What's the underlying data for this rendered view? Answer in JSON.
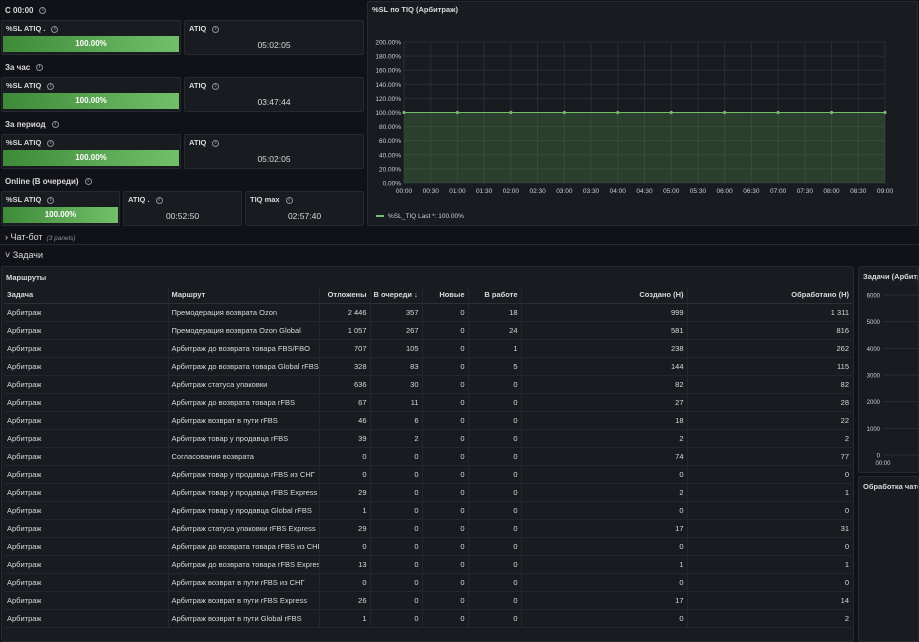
{
  "rows": {
    "r1": {
      "title": "С 00:00"
    },
    "r2": {
      "title": "За час"
    },
    "r3": {
      "title": "За период"
    },
    "r4": {
      "title": "Online (В очереди)"
    }
  },
  "panels": {
    "sl1": {
      "title": "%SL ATIQ .",
      "value": "100.00%"
    },
    "atiq1": {
      "title": "ATIQ",
      "value": "05:02:05"
    },
    "sl2": {
      "title": "%SL ATIQ",
      "value": "100.00%"
    },
    "atiq2": {
      "title": "ATIQ",
      "value": "03:47:44"
    },
    "sl3": {
      "title": "%SL ATIQ",
      "value": "100.00%"
    },
    "atiq3": {
      "title": "ATIQ",
      "value": "05:02:05"
    },
    "sl4": {
      "title": "%SL ATIQ",
      "value": "100.00%"
    },
    "atiq4": {
      "title": "ATIQ .",
      "value": "00:52:50"
    },
    "tiqmax": {
      "title": "TIQ max",
      "value": "02:57:40"
    }
  },
  "chart_panel": {
    "title": "%SL по TIQ (Арбитраж)",
    "legend": "%SL_TIQ  Last *: 100.00%"
  },
  "sections": {
    "chatbot": {
      "label": "Чат-бот",
      "sub": "(3 panels)"
    },
    "tasks": {
      "label": "Задачи"
    }
  },
  "routes_panel": {
    "title": "Маршруты",
    "columns": [
      "Задача",
      "Маршрут",
      "Отложены",
      "В очереди ↓",
      "Новые",
      "В работе",
      "Создано (Н)",
      "Обработано (Н)"
    ],
    "rows": [
      [
        "Арбитраж",
        "Премодерация возврата Ozon",
        "2 446",
        "357",
        "0",
        "18",
        "999",
        "1 311"
      ],
      [
        "Арбитраж",
        "Премодерация возврата Ozon Global",
        "1 057",
        "267",
        "0",
        "24",
        "581",
        "816"
      ],
      [
        "Арбитраж",
        "Арбитраж до возврата товара FBS/FBO",
        "707",
        "105",
        "0",
        "1",
        "238",
        "262"
      ],
      [
        "Арбитраж",
        "Арбитраж до возврата товара Global rFBS",
        "328",
        "83",
        "0",
        "5",
        "144",
        "115"
      ],
      [
        "Арбитраж",
        "Арбитраж статуса упаковки",
        "636",
        "30",
        "0",
        "0",
        "82",
        "82"
      ],
      [
        "Арбитраж",
        "Арбитраж до возврата товара rFBS",
        "67",
        "11",
        "0",
        "0",
        "27",
        "28"
      ],
      [
        "Арбитраж",
        "Арбитраж возврат в пути rFBS",
        "46",
        "6",
        "0",
        "0",
        "18",
        "22"
      ],
      [
        "Арбитраж",
        "Арбитраж товар у продавца rFBS",
        "39",
        "2",
        "0",
        "0",
        "2",
        "2"
      ],
      [
        "Арбитраж",
        "Согласования возврата",
        "0",
        "0",
        "0",
        "0",
        "74",
        "77"
      ],
      [
        "Арбитраж",
        "Арбитраж товар у продавца rFBS из СНГ",
        "0",
        "0",
        "0",
        "0",
        "0",
        "0"
      ],
      [
        "Арбитраж",
        "Арбитраж товар у продавца rFBS Express",
        "29",
        "0",
        "0",
        "0",
        "2",
        "1"
      ],
      [
        "Арбитраж",
        "Арбитраж товар у продавца Global rFBS",
        "1",
        "0",
        "0",
        "0",
        "0",
        "0"
      ],
      [
        "Арбитраж",
        "Арбитраж статуса упаковки rFBS Express",
        "29",
        "0",
        "0",
        "0",
        "17",
        "31"
      ],
      [
        "Арбитраж",
        "Арбитраж до возврата товара rFBS из СНГ",
        "0",
        "0",
        "0",
        "0",
        "0",
        "0"
      ],
      [
        "Арбитраж",
        "Арбитраж до возврата товара rFBS Express",
        "13",
        "0",
        "0",
        "0",
        "1",
        "1"
      ],
      [
        "Арбитраж",
        "Арбитраж возврат в пути rFBS из СНГ",
        "0",
        "0",
        "0",
        "0",
        "0",
        "0"
      ],
      [
        "Арбитраж",
        "Арбитраж возврат в пути rFBS Express",
        "26",
        "0",
        "0",
        "0",
        "17",
        "14"
      ],
      [
        "Арбитраж",
        "Арбитраж возврат в пути Global rFBS",
        "1",
        "0",
        "0",
        "0",
        "0",
        "2"
      ]
    ]
  },
  "right_panels": {
    "tasks_chart": {
      "title": "Задачи (Арбитр",
      "y_ticks": [
        "6000",
        "5000",
        "4000",
        "3000",
        "2000",
        "1000",
        "0"
      ],
      "x_tick": "00:00"
    },
    "chat_processing": {
      "title": "Обработка чато"
    }
  },
  "chart_data": {
    "type": "area",
    "title": "%SL по TIQ (Арбитраж)",
    "x": [
      "00:00",
      "00:30",
      "01:00",
      "01:30",
      "02:00",
      "02:30",
      "03:00",
      "03:30",
      "04:00",
      "04:30",
      "05:00",
      "05:30",
      "06:00",
      "06:30",
      "07:00",
      "07:30",
      "08:00",
      "08:30",
      "09:00"
    ],
    "y_ticks": [
      "0.00%",
      "20.00%",
      "40.00%",
      "60.00%",
      "80.00%",
      "100.00%",
      "120.00%",
      "140.00%",
      "160.00%",
      "180.00%",
      "200.00%"
    ],
    "ylim": [
      0,
      200
    ],
    "series": [
      {
        "name": "%SL_TIQ",
        "values": [
          100,
          100,
          100,
          100,
          100,
          100,
          100,
          100,
          100,
          100,
          100,
          100,
          100,
          100,
          100,
          100,
          100,
          100,
          100
        ],
        "point_x": [
          "00:00",
          "01:00",
          "02:00",
          "03:00",
          "04:00",
          "05:00",
          "06:00",
          "07:00",
          "08:00",
          "09:00"
        ],
        "color": "#73bf69"
      }
    ],
    "grid": true,
    "legend": "bottom-left"
  }
}
